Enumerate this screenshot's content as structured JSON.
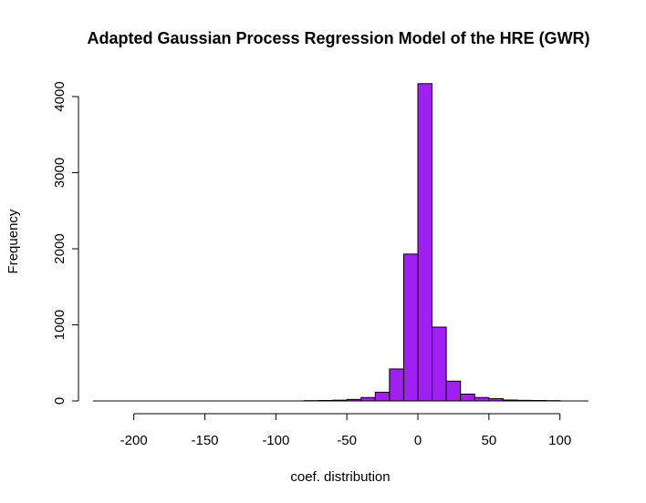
{
  "chart_data": {
    "type": "bar",
    "title": "Adapted Gaussian Process Regression Model of the HRE (GWR)",
    "xlabel": "coef. distribution",
    "ylabel": "Frequency",
    "xlim": [
      -230,
      120
    ],
    "ylim": [
      0,
      4200
    ],
    "x_ticks": [
      -200,
      -150,
      -100,
      -50,
      0,
      50,
      100
    ],
    "y_ticks": [
      0,
      1000,
      2000,
      3000,
      4000
    ],
    "bin_width": 10,
    "bins": [
      {
        "start": -230,
        "end": -220,
        "count": 0
      },
      {
        "start": -220,
        "end": -210,
        "count": 0
      },
      {
        "start": -210,
        "end": -200,
        "count": 0
      },
      {
        "start": -200,
        "end": -190,
        "count": 0
      },
      {
        "start": -190,
        "end": -180,
        "count": 0
      },
      {
        "start": -180,
        "end": -170,
        "count": 0
      },
      {
        "start": -170,
        "end": -160,
        "count": 0
      },
      {
        "start": -160,
        "end": -150,
        "count": 0
      },
      {
        "start": -150,
        "end": -140,
        "count": 0
      },
      {
        "start": -140,
        "end": -130,
        "count": 0
      },
      {
        "start": -130,
        "end": -120,
        "count": 0
      },
      {
        "start": -120,
        "end": -110,
        "count": 0
      },
      {
        "start": -110,
        "end": -100,
        "count": 0
      },
      {
        "start": -100,
        "end": -90,
        "count": 0
      },
      {
        "start": -90,
        "end": -80,
        "count": 0
      },
      {
        "start": -80,
        "end": -70,
        "count": 4
      },
      {
        "start": -70,
        "end": -60,
        "count": 6
      },
      {
        "start": -60,
        "end": -50,
        "count": 10
      },
      {
        "start": -50,
        "end": -40,
        "count": 20
      },
      {
        "start": -40,
        "end": -30,
        "count": 45
      },
      {
        "start": -30,
        "end": -20,
        "count": 115
      },
      {
        "start": -20,
        "end": -10,
        "count": 420
      },
      {
        "start": -10,
        "end": 0,
        "count": 1930
      },
      {
        "start": 0,
        "end": 10,
        "count": 4170
      },
      {
        "start": 10,
        "end": 20,
        "count": 970
      },
      {
        "start": 20,
        "end": 30,
        "count": 260
      },
      {
        "start": 30,
        "end": 40,
        "count": 90
      },
      {
        "start": 40,
        "end": 50,
        "count": 45
      },
      {
        "start": 50,
        "end": 60,
        "count": 30
      },
      {
        "start": 60,
        "end": 70,
        "count": 12
      },
      {
        "start": 70,
        "end": 80,
        "count": 8
      },
      {
        "start": 80,
        "end": 90,
        "count": 6
      },
      {
        "start": 90,
        "end": 100,
        "count": 4
      },
      {
        "start": 100,
        "end": 110,
        "count": 0
      },
      {
        "start": 110,
        "end": 120,
        "count": 0
      }
    ],
    "bar_color": "#A020F0",
    "bar_border_color": "#000000",
    "grid": false,
    "legend": "none"
  }
}
